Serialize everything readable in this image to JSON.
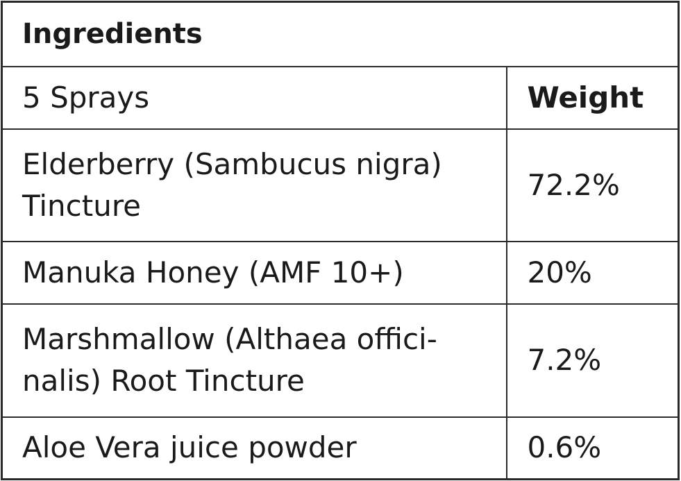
{
  "table": {
    "title": "Ingredients",
    "header": [
      "5 Sprays",
      "Weight"
    ],
    "rows": [
      [
        [
          "Elderberry (Sambucus nigra)",
          "Tincture"
        ],
        "72.2%"
      ],
      [
        [
          "Manuka Honey (AMF 10+)"
        ],
        "20%"
      ],
      [
        [
          "Marshmallow (Althaea offici-",
          "nalis) Root Tincture"
        ],
        "7.2%"
      ],
      [
        [
          "Aloe Vera juice powder"
        ],
        "0.6%"
      ]
    ]
  }
}
